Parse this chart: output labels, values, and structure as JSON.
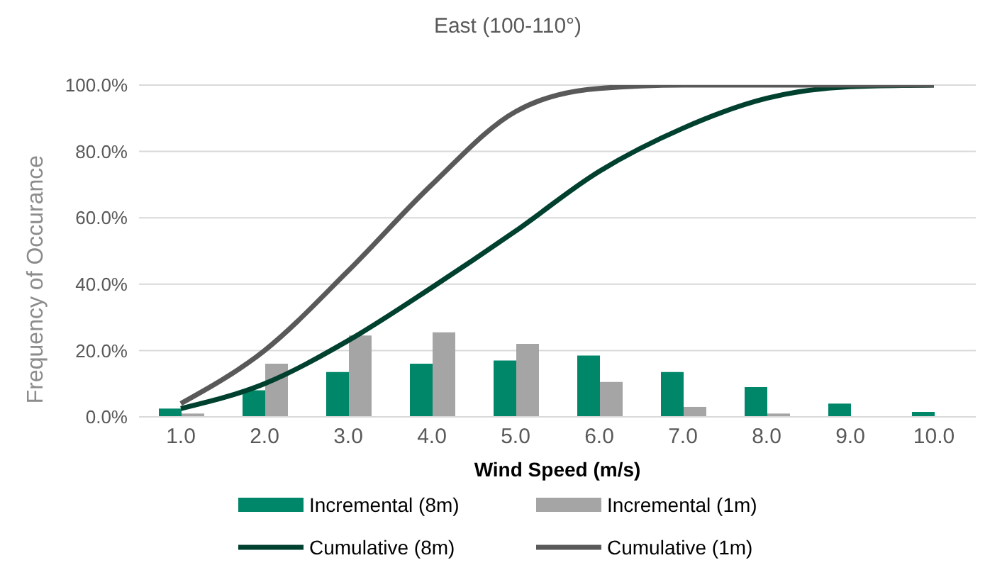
{
  "chart_data": {
    "type": "bar",
    "title": "East (100-110°)",
    "xlabel": "Wind Speed (m/s)",
    "ylabel": "Frequency of Occurance",
    "categories": [
      "1.0",
      "2.0",
      "3.0",
      "4.0",
      "5.0",
      "6.0",
      "7.0",
      "8.0",
      "9.0",
      "10.0"
    ],
    "series": [
      {
        "name": "Incremental (8m)",
        "color": "#00876a",
        "values": [
          2.5,
          8,
          13.5,
          16,
          17,
          18.5,
          13.5,
          9,
          4,
          1.5
        ]
      },
      {
        "name": "Incremental (1m)",
        "color": "#a5a5a5",
        "values": [
          1,
          16,
          24.5,
          25.5,
          22,
          10.5,
          3,
          1,
          0,
          0
        ]
      },
      {
        "name": "Cumulative (8m)",
        "type": "line",
        "color": "#00402e",
        "values": [
          2.5,
          10,
          23,
          39,
          56,
          74,
          87,
          96,
          99.5,
          100
        ]
      },
      {
        "name": "Cumulative (1m)",
        "type": "line",
        "color": "#595959",
        "values": [
          4,
          20,
          44,
          70,
          92,
          99,
          100,
          100,
          100,
          100
        ]
      }
    ],
    "ylim": [
      0,
      100
    ],
    "yticks": [
      {
        "value": 0,
        "label": "0.0%"
      },
      {
        "value": 20,
        "label": "20.0%"
      },
      {
        "value": 40,
        "label": "40.0%"
      },
      {
        "value": 60,
        "label": "60.0%"
      },
      {
        "value": 80,
        "label": "80.0%"
      },
      {
        "value": 100,
        "label": "100.0%"
      }
    ],
    "grid": "y",
    "legend": "bottom",
    "marker": "none",
    "line_style": "solid"
  }
}
